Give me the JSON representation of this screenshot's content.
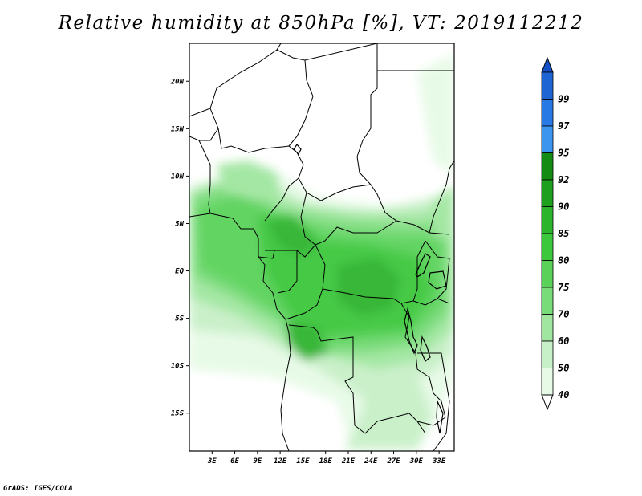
{
  "title": "Relative humidity at 850hPa [%], VT: 2019112212",
  "credit": "GrADS: IGES/COLA",
  "map": {
    "lon_range": [
      0,
      35
    ],
    "lat_range": [
      -19,
      24
    ],
    "lat_ticks": [
      {
        "value": 20,
        "label": "20N"
      },
      {
        "value": 15,
        "label": "15N"
      },
      {
        "value": 10,
        "label": "10N"
      },
      {
        "value": 5,
        "label": "5N"
      },
      {
        "value": 0,
        "label": "EQ"
      },
      {
        "value": -5,
        "label": "5S"
      },
      {
        "value": -10,
        "label": "10S"
      },
      {
        "value": -15,
        "label": "15S"
      }
    ],
    "lon_ticks": [
      {
        "value": 3,
        "label": "3E"
      },
      {
        "value": 6,
        "label": "6E"
      },
      {
        "value": 9,
        "label": "9E"
      },
      {
        "value": 12,
        "label": "12E"
      },
      {
        "value": 15,
        "label": "15E"
      },
      {
        "value": 18,
        "label": "18E"
      },
      {
        "value": 21,
        "label": "21E"
      },
      {
        "value": 24,
        "label": "24E"
      },
      {
        "value": 27,
        "label": "27E"
      },
      {
        "value": 30,
        "label": "30E"
      },
      {
        "value": 33,
        "label": "33E"
      }
    ]
  },
  "colorbar": {
    "levels": [
      "99",
      "97",
      "95",
      "92",
      "90",
      "85",
      "80",
      "75",
      "70",
      "60",
      "50",
      "40"
    ],
    "colors": [
      "#1e64d2",
      "#2878e6",
      "#3c96f0",
      "#148c14",
      "#1ea01e",
      "#2db42d",
      "#3cc83c",
      "#5ad25a",
      "#78dc78",
      "#a0e6a0",
      "#c8f0c8",
      "#e6fae6"
    ],
    "top_color": "#1450c8",
    "bottom_color": "#ffffff"
  }
}
